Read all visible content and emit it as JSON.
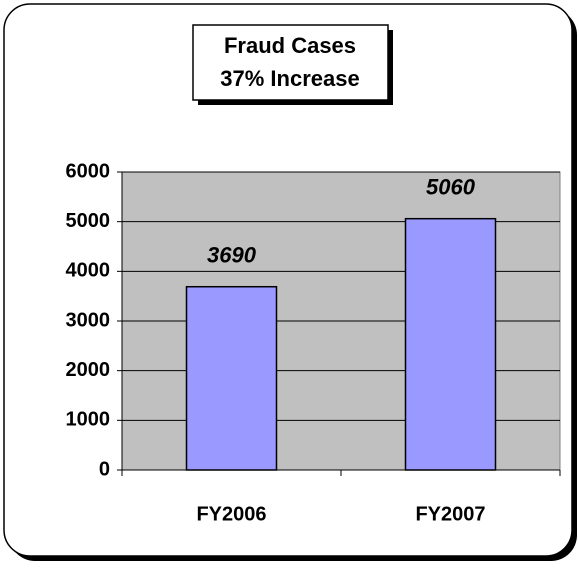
{
  "chart_data": {
    "type": "bar",
    "title": "Fraud Cases",
    "subtitle": "37% Increase",
    "categories": [
      "FY2006",
      "FY2007"
    ],
    "values": [
      3690,
      5060
    ],
    "color": "#9999ff",
    "ylim": [
      0,
      6000
    ],
    "yticks": [
      0,
      1000,
      2000,
      3000,
      4000,
      5000,
      6000
    ],
    "grid": true
  }
}
